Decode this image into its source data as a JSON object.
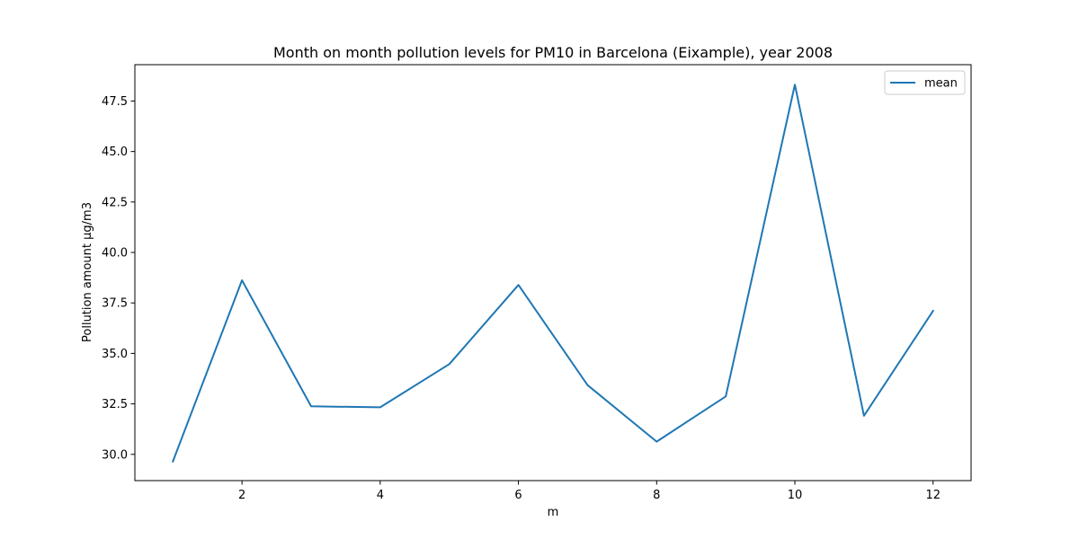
{
  "chart_data": {
    "type": "line",
    "title": "Month on month pollution levels for PM10 in Barcelona (Eixample), year 2008",
    "xlabel": "m",
    "ylabel": "Pollution amount µg/m3",
    "x": [
      1,
      2,
      3,
      4,
      5,
      6,
      7,
      8,
      9,
      10,
      11,
      12
    ],
    "series": [
      {
        "name": "mean",
        "color": "#1f77b4",
        "values": [
          29.65,
          38.62,
          32.38,
          32.33,
          34.47,
          38.39,
          33.43,
          30.63,
          32.87,
          48.31,
          31.91,
          37.11
        ]
      }
    ],
    "xlim": [
      0.45,
      12.55
    ],
    "ylim": [
      28.7,
      49.3
    ],
    "xticks": [
      2,
      4,
      6,
      8,
      10,
      12
    ],
    "xtick_labels": [
      "2",
      "4",
      "6",
      "8",
      "10",
      "12"
    ],
    "yticks": [
      30.0,
      32.5,
      35.0,
      37.5,
      40.0,
      42.5,
      45.0,
      47.5
    ],
    "ytick_labels": [
      "30.0",
      "32.5",
      "35.0",
      "37.5",
      "40.0",
      "42.5",
      "45.0",
      "47.5"
    ],
    "grid": false,
    "legend_position": "top-right"
  }
}
